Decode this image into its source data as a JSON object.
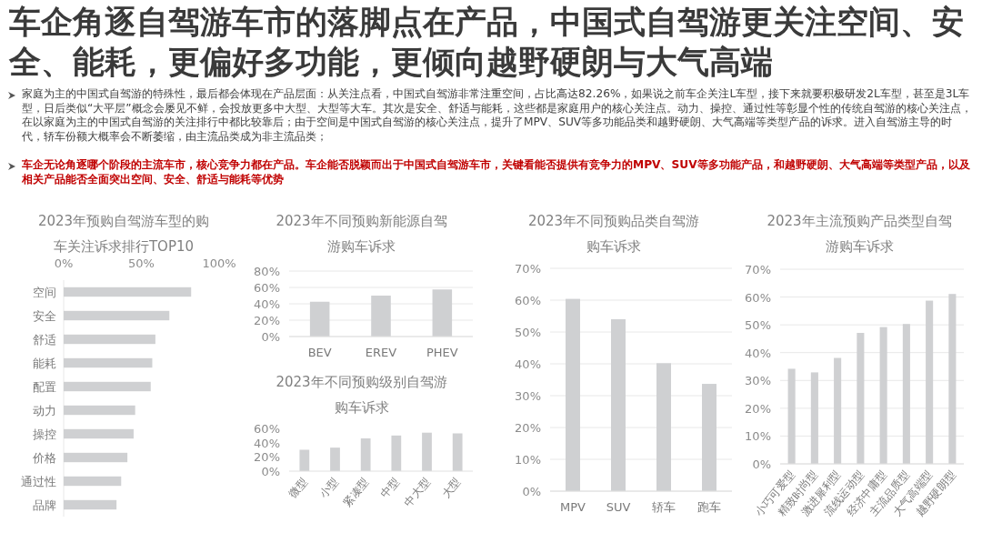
{
  "chart_data": [
    {
      "type": "other",
      "title": "车企角逐自驾游车市的落脚点在产品，中国式自驾游更关注空间、安全、能耗，更偏好多功能，更倾向越野硬朗与大气高端",
      "annotations": [
        "家庭为主的中国式自驾游的特殊性，最后都会体现在产品层面：从关注点看，中国式自驾游非常注重空间，占比高达82.26%，如果说之前车企关注L车型，接下来就要积极研发2L车型，甚至是3L车型，日后类似“大平层”概念会屡见不鲜，会投放更多中大型、大型等大车。其次是安全、舒适与能耗，这些都是家庭用户的核心关注点。动力、操控、通过性等彰显个性的传统自驾游的核心关注点，在以家庭为主的中国式自驾游的关注排行中都比较靠后；由于空间是中国式自驾游的核心关注点，提升了MPV、SUV等多功能品类和越野硬朗、大气高端等类型产品的诉求。进入自驾游主导的时代，轿车份额大概率会不断萎缩，由主流品类成为非主流品类；",
        "车企无论角逐哪个阶段的主流车市，核心竞争力都在产品。车企能否脱颖而出于中国式自驾游车市，关键看能否提供有竞争力的MPV、SUV等多功能产品，和越野硬朗、大气高端等类型产品，以及相关产品能否全面突出空间、安全、舒适与能耗等优势"
      ]
    },
    {
      "type": "bar",
      "orientation": "horizontal",
      "title": "2023年预购自驾游车型的购车关注诉求排行TOP10",
      "categories": [
        "空间",
        "安全",
        "舒适",
        "能耗",
        "配置",
        "动力",
        "操控",
        "价格",
        "通过性",
        "品牌"
      ],
      "values": [
        82,
        68,
        59,
        57,
        56,
        46,
        45,
        41,
        37,
        34
      ],
      "color": "#cfd0d2",
      "xlim": [
        0,
        100
      ],
      "xticks": [
        {
          "value": 0,
          "label": "0%"
        },
        {
          "value": 50,
          "label": "50%"
        },
        {
          "value": 100,
          "label": "100%"
        }
      ]
    },
    {
      "type": "bar",
      "title": "2023年不同预购新能源自驾游购车诉求",
      "categories": [
        "BEV",
        "EREV",
        "PHEV"
      ],
      "values": [
        42.5,
        50,
        57.5
      ],
      "color": "#cfd0d2",
      "ylim": [
        0,
        80
      ],
      "yticks": [
        {
          "value": 0,
          "label": "0%"
        },
        {
          "value": 20,
          "label": "20%"
        },
        {
          "value": 40,
          "label": "40%"
        },
        {
          "value": 60,
          "label": "60%"
        },
        {
          "value": 80,
          "label": "80%"
        }
      ],
      "grid": "y"
    },
    {
      "type": "bar",
      "title": "2023年不同预购级别自驾游购车诉求",
      "categories": [
        "微型",
        "小型",
        "紧凑型",
        "中型",
        "中大型",
        "大型"
      ],
      "values": [
        30,
        33,
        46,
        50,
        54,
        53
      ],
      "color": "#cfd0d2",
      "ylim": [
        0,
        60
      ],
      "yticks": [
        {
          "value": 0,
          "label": "0%"
        },
        {
          "value": 20,
          "label": "20%"
        },
        {
          "value": 40,
          "label": "40%"
        },
        {
          "value": 60,
          "label": "60%"
        }
      ]
    },
    {
      "type": "bar",
      "title": "2023年不同预购品类自驾游购车诉求",
      "categories": [
        "MPV",
        "SUV",
        "轿车",
        "跑车"
      ],
      "values": [
        60.4,
        54,
        40.2,
        33.7
      ],
      "color": "#cfd0d2",
      "ylim": [
        0,
        70
      ],
      "yticks": [
        {
          "value": 0,
          "label": "0%"
        },
        {
          "value": 10,
          "label": "10%"
        },
        {
          "value": 20,
          "label": "20%"
        },
        {
          "value": 30,
          "label": "30%"
        },
        {
          "value": 40,
          "label": "40%"
        },
        {
          "value": 50,
          "label": "50%"
        },
        {
          "value": 60,
          "label": "60%"
        },
        {
          "value": 70,
          "label": "70%"
        }
      ],
      "grid": "y"
    },
    {
      "type": "bar",
      "title": "2023年主流预购产品类型自驾游购车诉求",
      "categories": [
        "小巧可爱型",
        "精致时尚型",
        "激进犀利型",
        "流线运动型",
        "经济中庸型",
        "主流品质型",
        "大气高端型",
        "越野硬朗型"
      ],
      "values": [
        34.2,
        32.9,
        38.1,
        47.1,
        49.2,
        50.3,
        58.7,
        61.1
      ],
      "color": "#cfd0d2",
      "ylim": [
        0,
        70
      ],
      "yticks": [
        {
          "value": 0,
          "label": "0%"
        },
        {
          "value": 10,
          "label": "10%"
        },
        {
          "value": 20,
          "label": "20%"
        },
        {
          "value": 30,
          "label": "30%"
        },
        {
          "value": 40,
          "label": "40%"
        },
        {
          "value": 50,
          "label": "50%"
        },
        {
          "value": 60,
          "label": "60%"
        },
        {
          "value": 70,
          "label": "70%"
        }
      ],
      "grid": "y"
    }
  ]
}
